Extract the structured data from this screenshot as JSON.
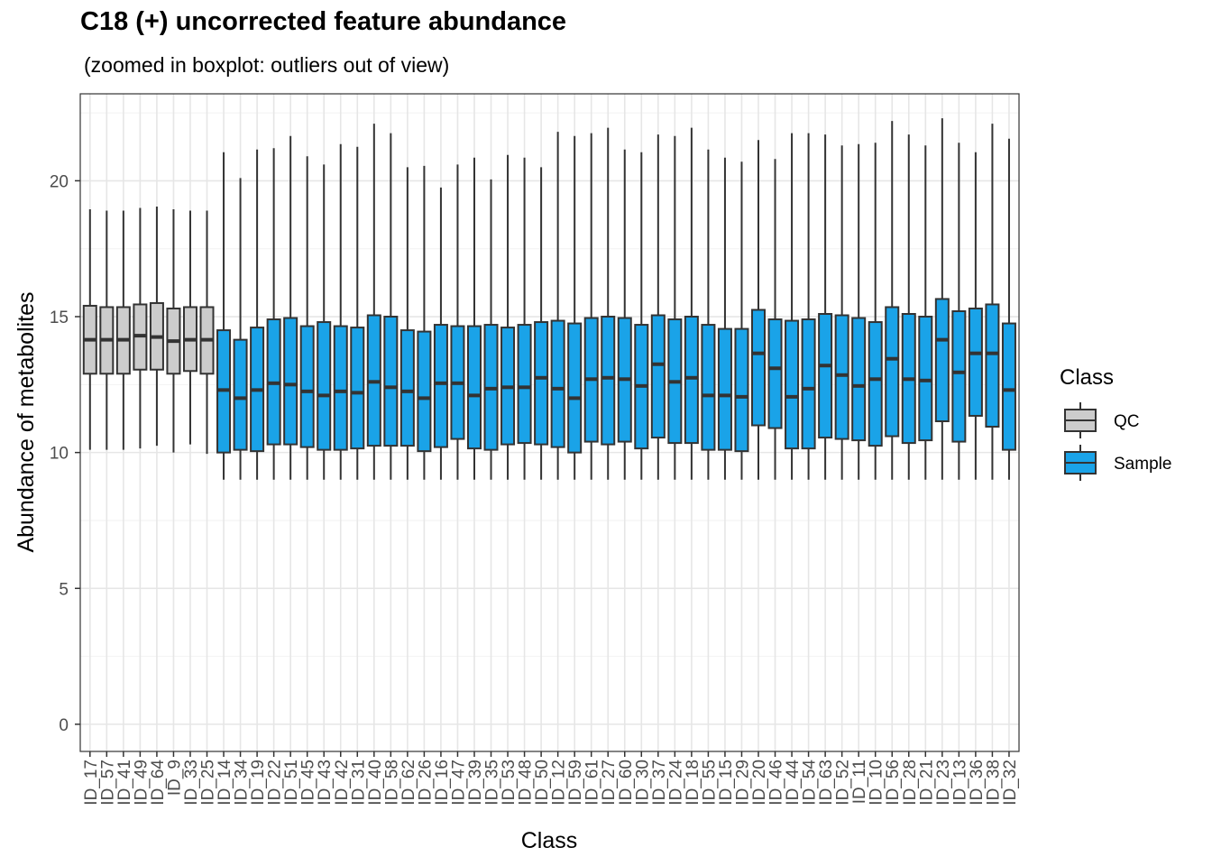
{
  "chart_data": {
    "type": "boxplot",
    "title": "C18 (+) uncorrected feature abundance",
    "subtitle": " (zoomed in boxplot: outliers out of view)",
    "xlabel": "Class",
    "ylabel": "Abundance of metabolites",
    "ylim": [
      -1,
      23.2
    ],
    "yticks": [
      0,
      5,
      10,
      15,
      20
    ],
    "grid": true,
    "legend": {
      "title": "Class",
      "position": "right",
      "entries": [
        {
          "name": "QC",
          "color": "#cccccc"
        },
        {
          "name": "Sample",
          "color": "#1aa3e8"
        }
      ]
    },
    "colors": {
      "QC": "#cccccc",
      "Sample": "#1aa3e8",
      "line": "#333333"
    },
    "categories": [
      "ID_17",
      "ID_57",
      "ID_41",
      "ID_49",
      "ID_64",
      "ID_9",
      "ID_33",
      "ID_25",
      "ID_14",
      "ID_34",
      "ID_19",
      "ID_22",
      "ID_51",
      "ID_45",
      "ID_43",
      "ID_42",
      "ID_31",
      "ID_40",
      "ID_58",
      "ID_62",
      "ID_26",
      "ID_16",
      "ID_47",
      "ID_39",
      "ID_35",
      "ID_53",
      "ID_48",
      "ID_50",
      "ID_12",
      "ID_59",
      "ID_61",
      "ID_27",
      "ID_60",
      "ID_30",
      "ID_37",
      "ID_24",
      "ID_18",
      "ID_55",
      "ID_15",
      "ID_29",
      "ID_20",
      "ID_46",
      "ID_44",
      "ID_54",
      "ID_63",
      "ID_52",
      "ID_11",
      "ID_10",
      "ID_56",
      "ID_28",
      "ID_21",
      "ID_23",
      "ID_13",
      "ID_36",
      "ID_38",
      "ID_32"
    ],
    "boxes": [
      {
        "class": "QC",
        "whisker_low": 10.1,
        "q1": 12.9,
        "median": 14.15,
        "q3": 15.4,
        "whisker_high": 18.95
      },
      {
        "class": "QC",
        "whisker_low": 10.1,
        "q1": 12.9,
        "median": 14.15,
        "q3": 15.35,
        "whisker_high": 18.9
      },
      {
        "class": "QC",
        "whisker_low": 10.1,
        "q1": 12.9,
        "median": 14.15,
        "q3": 15.35,
        "whisker_high": 18.9
      },
      {
        "class": "QC",
        "whisker_low": 10.15,
        "q1": 13.05,
        "median": 14.3,
        "q3": 15.45,
        "whisker_high": 19.0
      },
      {
        "class": "QC",
        "whisker_low": 10.25,
        "q1": 13.05,
        "median": 14.25,
        "q3": 15.5,
        "whisker_high": 19.05
      },
      {
        "class": "QC",
        "whisker_low": 10.0,
        "q1": 12.9,
        "median": 14.1,
        "q3": 15.3,
        "whisker_high": 18.95
      },
      {
        "class": "QC",
        "whisker_low": 10.3,
        "q1": 13.0,
        "median": 14.15,
        "q3": 15.35,
        "whisker_high": 18.9
      },
      {
        "class": "QC",
        "whisker_low": 9.95,
        "q1": 12.9,
        "median": 14.15,
        "q3": 15.35,
        "whisker_high": 18.9
      },
      {
        "class": "Sample",
        "whisker_low": 9.0,
        "q1": 10.0,
        "median": 12.3,
        "q3": 14.5,
        "whisker_high": 21.05
      },
      {
        "class": "Sample",
        "whisker_low": 9.0,
        "q1": 10.1,
        "median": 12.0,
        "q3": 14.15,
        "whisker_high": 20.1
      },
      {
        "class": "Sample",
        "whisker_low": 9.0,
        "q1": 10.05,
        "median": 12.3,
        "q3": 14.6,
        "whisker_high": 21.15
      },
      {
        "class": "Sample",
        "whisker_low": 9.0,
        "q1": 10.3,
        "median": 12.55,
        "q3": 14.9,
        "whisker_high": 21.2
      },
      {
        "class": "Sample",
        "whisker_low": 9.0,
        "q1": 10.3,
        "median": 12.5,
        "q3": 14.95,
        "whisker_high": 21.65
      },
      {
        "class": "Sample",
        "whisker_low": 9.0,
        "q1": 10.2,
        "median": 12.25,
        "q3": 14.65,
        "whisker_high": 20.9
      },
      {
        "class": "Sample",
        "whisker_low": 9.0,
        "q1": 10.1,
        "median": 12.1,
        "q3": 14.8,
        "whisker_high": 20.6
      },
      {
        "class": "Sample",
        "whisker_low": 9.0,
        "q1": 10.1,
        "median": 12.25,
        "q3": 14.65,
        "whisker_high": 21.35
      },
      {
        "class": "Sample",
        "whisker_low": 9.0,
        "q1": 10.15,
        "median": 12.2,
        "q3": 14.6,
        "whisker_high": 21.25
      },
      {
        "class": "Sample",
        "whisker_low": 9.0,
        "q1": 10.25,
        "median": 12.6,
        "q3": 15.05,
        "whisker_high": 22.1
      },
      {
        "class": "Sample",
        "whisker_low": 9.0,
        "q1": 10.25,
        "median": 12.4,
        "q3": 15.0,
        "whisker_high": 21.75
      },
      {
        "class": "Sample",
        "whisker_low": 9.0,
        "q1": 10.25,
        "median": 12.25,
        "q3": 14.5,
        "whisker_high": 20.5
      },
      {
        "class": "Sample",
        "whisker_low": 9.0,
        "q1": 10.05,
        "median": 12.0,
        "q3": 14.45,
        "whisker_high": 20.55
      },
      {
        "class": "Sample",
        "whisker_low": 9.0,
        "q1": 10.2,
        "median": 12.55,
        "q3": 14.7,
        "whisker_high": 19.75
      },
      {
        "class": "Sample",
        "whisker_low": 9.0,
        "q1": 10.5,
        "median": 12.55,
        "q3": 14.65,
        "whisker_high": 20.6
      },
      {
        "class": "Sample",
        "whisker_low": 9.0,
        "q1": 10.15,
        "median": 12.1,
        "q3": 14.65,
        "whisker_high": 20.85
      },
      {
        "class": "Sample",
        "whisker_low": 9.0,
        "q1": 10.1,
        "median": 12.35,
        "q3": 14.7,
        "whisker_high": 20.05
      },
      {
        "class": "Sample",
        "whisker_low": 9.0,
        "q1": 10.3,
        "median": 12.4,
        "q3": 14.6,
        "whisker_high": 20.95
      },
      {
        "class": "Sample",
        "whisker_low": 9.0,
        "q1": 10.35,
        "median": 12.4,
        "q3": 14.7,
        "whisker_high": 20.85
      },
      {
        "class": "Sample",
        "whisker_low": 9.0,
        "q1": 10.3,
        "median": 12.75,
        "q3": 14.8,
        "whisker_high": 20.5
      },
      {
        "class": "Sample",
        "whisker_low": 9.0,
        "q1": 10.2,
        "median": 12.35,
        "q3": 14.85,
        "whisker_high": 21.8
      },
      {
        "class": "Sample",
        "whisker_low": 9.0,
        "q1": 10.0,
        "median": 12.0,
        "q3": 14.75,
        "whisker_high": 21.65
      },
      {
        "class": "Sample",
        "whisker_low": 9.0,
        "q1": 10.4,
        "median": 12.7,
        "q3": 14.95,
        "whisker_high": 21.75
      },
      {
        "class": "Sample",
        "whisker_low": 9.0,
        "q1": 10.3,
        "median": 12.75,
        "q3": 15.0,
        "whisker_high": 21.95
      },
      {
        "class": "Sample",
        "whisker_low": 9.0,
        "q1": 10.4,
        "median": 12.7,
        "q3": 14.95,
        "whisker_high": 21.15
      },
      {
        "class": "Sample",
        "whisker_low": 9.0,
        "q1": 10.15,
        "median": 12.45,
        "q3": 14.7,
        "whisker_high": 21.05
      },
      {
        "class": "Sample",
        "whisker_low": 9.0,
        "q1": 10.55,
        "median": 13.25,
        "q3": 15.05,
        "whisker_high": 21.7
      },
      {
        "class": "Sample",
        "whisker_low": 9.0,
        "q1": 10.35,
        "median": 12.6,
        "q3": 14.9,
        "whisker_high": 21.65
      },
      {
        "class": "Sample",
        "whisker_low": 9.0,
        "q1": 10.35,
        "median": 12.75,
        "q3": 15.0,
        "whisker_high": 21.95
      },
      {
        "class": "Sample",
        "whisker_low": 9.0,
        "q1": 10.1,
        "median": 12.1,
        "q3": 14.7,
        "whisker_high": 21.15
      },
      {
        "class": "Sample",
        "whisker_low": 9.0,
        "q1": 10.1,
        "median": 12.1,
        "q3": 14.55,
        "whisker_high": 20.85
      },
      {
        "class": "Sample",
        "whisker_low": 9.0,
        "q1": 10.05,
        "median": 12.05,
        "q3": 14.55,
        "whisker_high": 20.7
      },
      {
        "class": "Sample",
        "whisker_low": 9.0,
        "q1": 11.0,
        "median": 13.65,
        "q3": 15.25,
        "whisker_high": 21.5
      },
      {
        "class": "Sample",
        "whisker_low": 9.0,
        "q1": 10.9,
        "median": 13.1,
        "q3": 14.9,
        "whisker_high": 20.8
      },
      {
        "class": "Sample",
        "whisker_low": 9.0,
        "q1": 10.15,
        "median": 12.05,
        "q3": 14.85,
        "whisker_high": 21.75
      },
      {
        "class": "Sample",
        "whisker_low": 9.0,
        "q1": 10.15,
        "median": 12.35,
        "q3": 14.9,
        "whisker_high": 21.75
      },
      {
        "class": "Sample",
        "whisker_low": 9.0,
        "q1": 10.55,
        "median": 13.2,
        "q3": 15.1,
        "whisker_high": 21.7
      },
      {
        "class": "Sample",
        "whisker_low": 9.0,
        "q1": 10.5,
        "median": 12.85,
        "q3": 15.05,
        "whisker_high": 21.3
      },
      {
        "class": "Sample",
        "whisker_low": 9.0,
        "q1": 10.45,
        "median": 12.45,
        "q3": 14.95,
        "whisker_high": 21.35
      },
      {
        "class": "Sample",
        "whisker_low": 9.0,
        "q1": 10.25,
        "median": 12.7,
        "q3": 14.8,
        "whisker_high": 21.4
      },
      {
        "class": "Sample",
        "whisker_low": 9.0,
        "q1": 10.6,
        "median": 13.45,
        "q3": 15.35,
        "whisker_high": 22.2
      },
      {
        "class": "Sample",
        "whisker_low": 9.0,
        "q1": 10.35,
        "median": 12.7,
        "q3": 15.1,
        "whisker_high": 21.7
      },
      {
        "class": "Sample",
        "whisker_low": 9.0,
        "q1": 10.45,
        "median": 12.65,
        "q3": 15.0,
        "whisker_high": 21.3
      },
      {
        "class": "Sample",
        "whisker_low": 9.0,
        "q1": 11.15,
        "median": 14.15,
        "q3": 15.65,
        "whisker_high": 22.3
      },
      {
        "class": "Sample",
        "whisker_low": 9.0,
        "q1": 10.4,
        "median": 12.95,
        "q3": 15.2,
        "whisker_high": 21.4
      },
      {
        "class": "Sample",
        "whisker_low": 9.0,
        "q1": 11.35,
        "median": 13.65,
        "q3": 15.3,
        "whisker_high": 21.05
      },
      {
        "class": "Sample",
        "whisker_low": 9.0,
        "q1": 10.95,
        "median": 13.65,
        "q3": 15.45,
        "whisker_high": 22.1
      },
      {
        "class": "Sample",
        "whisker_low": 9.0,
        "q1": 10.1,
        "median": 12.3,
        "q3": 14.75,
        "whisker_high": 21.55
      }
    ]
  }
}
